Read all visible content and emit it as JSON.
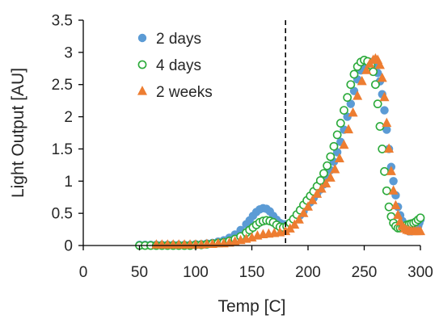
{
  "chart_data": {
    "type": "scatter",
    "xlabel": "Temp [C]",
    "ylabel": "Light Output [AU]",
    "xlim": [
      0,
      300
    ],
    "ylim": [
      0,
      3.5
    ],
    "xticks": [
      "0",
      "50",
      "100",
      "150",
      "200",
      "250",
      "300"
    ],
    "yticks": [
      "0",
      "0.5",
      "1",
      "1.5",
      "2",
      "2.5",
      "3",
      "3.5"
    ],
    "grid": false,
    "legend_position": "top-left",
    "reference_line": {
      "x": 180,
      "style": "dashed"
    },
    "series": [
      {
        "name": "2 days",
        "marker": "filled-circle",
        "color": "#5B9BD5",
        "x": [
          50,
          55,
          60,
          65,
          70,
          75,
          80,
          85,
          90,
          95,
          100,
          105,
          110,
          115,
          120,
          125,
          130,
          135,
          140,
          145,
          148,
          151,
          154,
          157,
          160,
          163,
          166,
          169,
          172,
          175,
          178,
          181,
          184,
          187,
          190,
          193,
          196,
          199,
          202,
          205,
          208,
          211,
          214,
          217,
          220,
          223,
          226,
          229,
          232,
          235,
          238,
          241,
          244,
          247,
          250,
          253,
          256,
          259,
          262,
          264,
          266,
          268,
          270,
          272,
          274,
          276,
          278,
          280,
          282,
          284,
          286,
          288,
          290,
          292,
          294,
          296,
          298,
          299,
          300
        ],
        "values": [
          0.01,
          0.01,
          0.01,
          0.01,
          0.01,
          0.01,
          0.01,
          0.01,
          0.01,
          0.01,
          0.02,
          0.02,
          0.03,
          0.04,
          0.06,
          0.08,
          0.12,
          0.17,
          0.24,
          0.33,
          0.39,
          0.46,
          0.52,
          0.56,
          0.58,
          0.57,
          0.53,
          0.46,
          0.4,
          0.35,
          0.33,
          0.33,
          0.35,
          0.38,
          0.42,
          0.47,
          0.53,
          0.6,
          0.67,
          0.74,
          0.8,
          0.87,
          0.95,
          1.05,
          1.17,
          1.3,
          1.45,
          1.61,
          1.8,
          2.0,
          2.2,
          2.4,
          2.58,
          2.72,
          2.8,
          2.84,
          2.85,
          2.8,
          2.68,
          2.55,
          2.35,
          2.1,
          1.8,
          1.5,
          1.22,
          1.0,
          0.78,
          0.6,
          0.47,
          0.38,
          0.3,
          0.25,
          0.22,
          0.22,
          0.24,
          0.27,
          0.3,
          0.35,
          0.4
        ]
      },
      {
        "name": "4 days",
        "marker": "open-circle",
        "color": "#2BAA3A",
        "x": [
          50,
          55,
          60,
          65,
          70,
          75,
          80,
          85,
          90,
          95,
          100,
          105,
          110,
          115,
          120,
          125,
          130,
          135,
          140,
          145,
          148,
          151,
          154,
          157,
          160,
          163,
          166,
          169,
          172,
          175,
          178,
          181,
          184,
          187,
          190,
          193,
          196,
          199,
          202,
          205,
          208,
          211,
          214,
          217,
          220,
          223,
          226,
          229,
          232,
          235,
          238,
          241,
          244,
          247,
          250,
          253,
          256,
          258,
          260,
          262,
          264,
          266,
          268,
          270,
          272,
          274,
          276,
          278,
          280,
          282,
          284,
          286,
          288,
          290,
          292,
          294,
          296,
          298,
          300
        ],
        "values": [
          0.0,
          0.0,
          0.0,
          0.0,
          0.0,
          0.0,
          0.0,
          0.0,
          0.0,
          0.0,
          0.01,
          0.01,
          0.02,
          0.03,
          0.04,
          0.05,
          0.07,
          0.1,
          0.14,
          0.2,
          0.24,
          0.28,
          0.32,
          0.36,
          0.38,
          0.39,
          0.38,
          0.36,
          0.32,
          0.29,
          0.28,
          0.3,
          0.35,
          0.41,
          0.48,
          0.55,
          0.63,
          0.7,
          0.77,
          0.84,
          0.92,
          1.01,
          1.12,
          1.24,
          1.38,
          1.54,
          1.72,
          1.9,
          2.1,
          2.3,
          2.5,
          2.66,
          2.78,
          2.85,
          2.88,
          2.86,
          2.8,
          2.7,
          2.5,
          2.2,
          1.85,
          1.5,
          1.15,
          0.85,
          0.6,
          0.45,
          0.35,
          0.3,
          0.27,
          0.27,
          0.28,
          0.3,
          0.32,
          0.33,
          0.34,
          0.35,
          0.37,
          0.4,
          0.43
        ]
      },
      {
        "name": "2 weeks",
        "marker": "filled-triangle",
        "color": "#ED7D31",
        "x": [
          65,
          70,
          75,
          80,
          85,
          90,
          95,
          100,
          105,
          110,
          115,
          120,
          125,
          130,
          135,
          140,
          145,
          150,
          155,
          160,
          165,
          170,
          175,
          180,
          184,
          188,
          192,
          196,
          200,
          204,
          208,
          212,
          216,
          220,
          224,
          228,
          232,
          236,
          240,
          244,
          248,
          252,
          255,
          258,
          260,
          262,
          264,
          266,
          268,
          270,
          272,
          274,
          276,
          278,
          280,
          282,
          284,
          286,
          288,
          290,
          292,
          294,
          296,
          298,
          300
        ],
        "values": [
          0.01,
          0.01,
          0.01,
          0.01,
          0.01,
          0.01,
          0.01,
          0.01,
          0.01,
          0.02,
          0.02,
          0.03,
          0.03,
          0.04,
          0.06,
          0.08,
          0.1,
          0.12,
          0.15,
          0.17,
          0.18,
          0.19,
          0.2,
          0.22,
          0.26,
          0.32,
          0.4,
          0.5,
          0.6,
          0.7,
          0.8,
          0.88,
          0.96,
          1.05,
          1.18,
          1.35,
          1.56,
          1.8,
          2.06,
          2.32,
          2.55,
          2.72,
          2.82,
          2.88,
          2.9,
          2.88,
          2.8,
          2.6,
          2.3,
          1.9,
          1.5,
          1.15,
          0.85,
          0.62,
          0.47,
          0.37,
          0.3,
          0.26,
          0.24,
          0.23,
          0.22,
          0.22,
          0.22,
          0.22,
          0.22
        ]
      }
    ]
  }
}
